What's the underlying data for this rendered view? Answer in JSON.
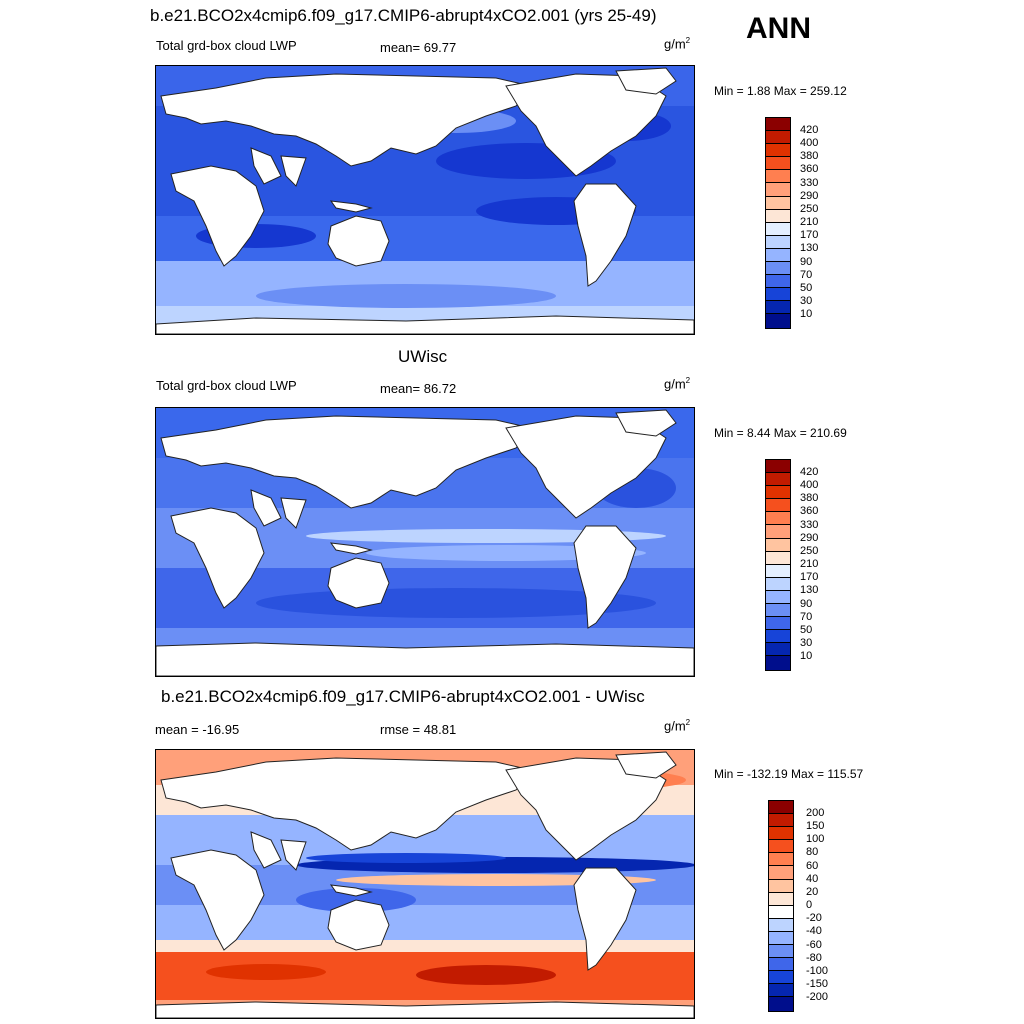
{
  "season": "ANN",
  "panels": [
    {
      "title": "b.e21.BCO2x4cmip6.f09_g17.CMIP6-abrupt4xCO2.001 (yrs 25-49)",
      "variable": "Total grd-box cloud LWP",
      "stat": "mean=  69.77",
      "units": "g/m",
      "units_sup": "2",
      "minmax": "Min =   1.88 Max = 259.12"
    },
    {
      "title": "UWisc",
      "variable": "Total grd-box cloud LWP",
      "stat": "mean=  86.72",
      "units": "g/m",
      "units_sup": "2",
      "minmax": "Min =   8.44 Max = 210.69"
    },
    {
      "title": "b.e21.BCO2x4cmip6.f09_g17.CMIP6-abrupt4xCO2.001 - UWisc",
      "variable": "mean = -16.95",
      "stat": "rmse =  48.81",
      "units": "g/m",
      "units_sup": "2",
      "minmax": "Min = -132.19 Max = 115.57"
    }
  ],
  "abs_colorbar": {
    "labels": [
      "420",
      "400",
      "380",
      "360",
      "330",
      "290",
      "250",
      "210",
      "170",
      "130",
      "90",
      "70",
      "50",
      "30",
      "10"
    ],
    "colors": [
      "#8b0000",
      "#c21b00",
      "#e03200",
      "#f5501e",
      "#ff7f50",
      "#ffa07a",
      "#ffc4a0",
      "#fde6d6",
      "#e4efff",
      "#bdd4ff",
      "#95b4ff",
      "#6b8ff5",
      "#3f66ea",
      "#1744d8",
      "#0526b0",
      "#000e8c"
    ]
  },
  "diff_colorbar": {
    "labels": [
      "200",
      "150",
      "100",
      "80",
      "60",
      "40",
      "20",
      "0",
      "-20",
      "-40",
      "-60",
      "-80",
      "-100",
      "-150",
      "-200"
    ],
    "colors": [
      "#8b0000",
      "#c21b00",
      "#e03200",
      "#f5501e",
      "#ff7f50",
      "#ffa07a",
      "#ffc4a0",
      "#fde6d6",
      "#ffffff",
      "#bdd4ff",
      "#95b4ff",
      "#6b8ff5",
      "#3f66ea",
      "#1744d8",
      "#0526b0",
      "#000e8c"
    ]
  }
}
